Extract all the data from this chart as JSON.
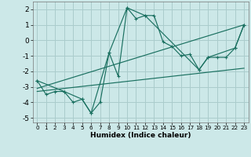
{
  "xlabel": "Humidex (Indice chaleur)",
  "bg_color": "#cce8e8",
  "grid_color": "#aacccc",
  "line_color": "#1a7060",
  "xlim": [
    -0.5,
    23.5
  ],
  "ylim": [
    -5.3,
    2.5
  ],
  "xticks": [
    0,
    1,
    2,
    3,
    4,
    5,
    6,
    7,
    8,
    9,
    10,
    11,
    12,
    13,
    14,
    15,
    16,
    17,
    18,
    19,
    20,
    21,
    22,
    23
  ],
  "yticks": [
    -5,
    -4,
    -3,
    -2,
    -1,
    0,
    1,
    2
  ],
  "series1_x": [
    0,
    1,
    2,
    3,
    4,
    5,
    6,
    7,
    8,
    9,
    10,
    11,
    12,
    13,
    14,
    15,
    16,
    17,
    18,
    19,
    20,
    21,
    22,
    23
  ],
  "series1_y": [
    -2.6,
    -3.5,
    -3.3,
    -3.3,
    -4.0,
    -3.8,
    -4.7,
    -4.0,
    -0.8,
    -2.3,
    2.1,
    1.4,
    1.6,
    1.6,
    -0.1,
    -0.4,
    -1.0,
    -0.9,
    -1.9,
    -1.1,
    -1.1,
    -1.1,
    -0.5,
    1.0
  ],
  "series2_x": [
    0,
    3,
    5,
    6,
    8,
    10,
    12,
    18,
    19,
    22,
    23
  ],
  "series2_y": [
    -2.6,
    -3.3,
    -3.8,
    -4.7,
    -0.8,
    2.1,
    1.6,
    -1.9,
    -1.1,
    -0.5,
    1.0
  ],
  "series3_x": [
    0,
    23
  ],
  "series3_y": [
    -3.3,
    -1.8
  ],
  "series4_x": [
    0,
    23
  ],
  "series4_y": [
    -3.1,
    1.0
  ]
}
